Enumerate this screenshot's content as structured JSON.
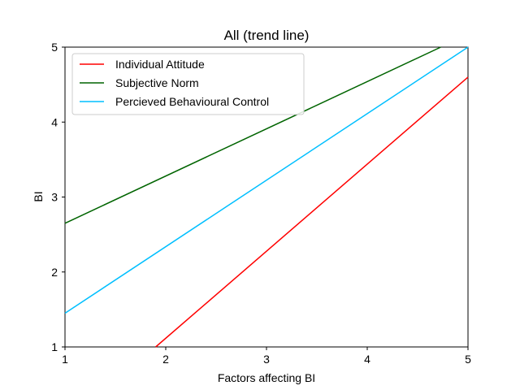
{
  "chart_data": {
    "type": "line",
    "title": "All (trend line)",
    "xlabel": "Factors affecting BI",
    "ylabel": "BI",
    "xlim": [
      1,
      5
    ],
    "ylim": [
      1,
      5
    ],
    "xticks": [
      "1",
      "2",
      "3",
      "4",
      "5"
    ],
    "yticks": [
      "1",
      "2",
      "3",
      "4",
      "5"
    ],
    "grid": false,
    "legend": "top-left",
    "series": [
      {
        "name": "Individual Attitude",
        "color": "#ff0000",
        "x": [
          1.9,
          5
        ],
        "y": [
          1.0,
          4.6
        ]
      },
      {
        "name": "Subjective Norm",
        "color": "#006400",
        "x": [
          1,
          4.73
        ],
        "y": [
          2.65,
          5.0
        ]
      },
      {
        "name": "Percieved Behavioural Control",
        "color": "#00bfff",
        "x": [
          1,
          5
        ],
        "y": [
          1.45,
          5.0
        ]
      }
    ]
  }
}
